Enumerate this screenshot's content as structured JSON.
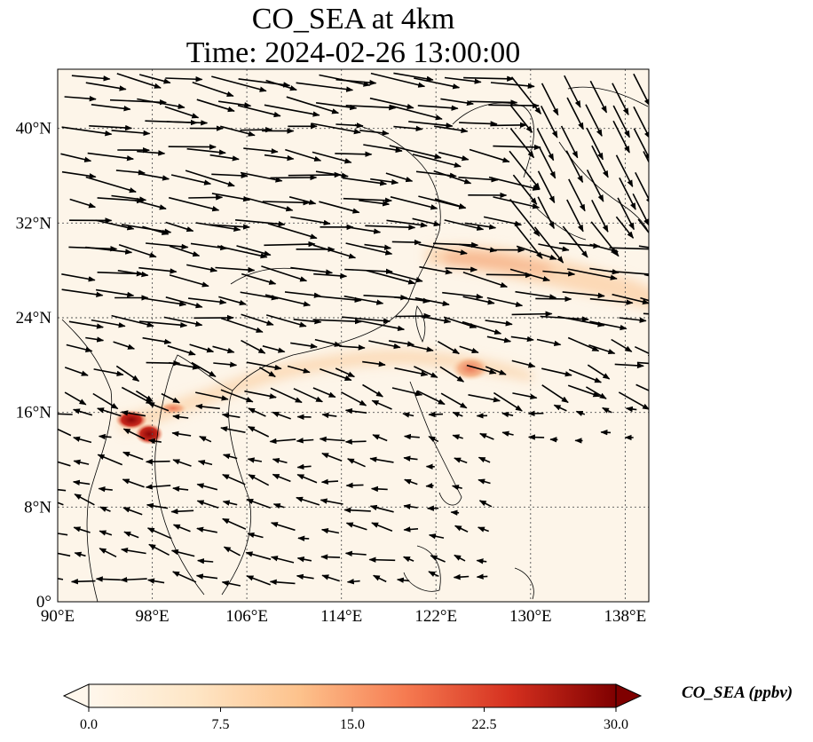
{
  "title": {
    "line1": "CO_SEA at 4km",
    "line2": "Time: 2024-02-26 13:00:00"
  },
  "map": {
    "lon_range": [
      90,
      140
    ],
    "lat_range": [
      0,
      45
    ],
    "x_ticks": [
      "90°E",
      "98°E",
      "106°E",
      "114°E",
      "122°E",
      "130°E",
      "138°E"
    ],
    "y_ticks": [
      "0°",
      "8°N",
      "16°N",
      "24°N",
      "32°N",
      "40°N"
    ],
    "gridlines": true,
    "background_color": "#fdf5e9",
    "plume_colors": [
      "#fde3c4",
      "#f9b88a",
      "#e4563a",
      "#9b0e0a"
    ],
    "wind_vectors": "black arrows"
  },
  "colorbar": {
    "label": "CO_SEA (ppbv)",
    "ticks": [
      "0.0",
      "7.5",
      "15.0",
      "22.5",
      "30.0"
    ],
    "range": [
      0,
      30
    ],
    "colormap": "OrRd"
  }
}
